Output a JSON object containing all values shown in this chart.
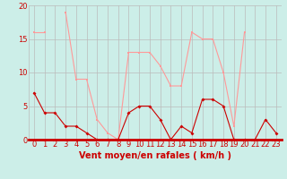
{
  "hours": [
    0,
    1,
    2,
    3,
    4,
    5,
    6,
    7,
    8,
    9,
    10,
    11,
    12,
    13,
    14,
    15,
    16,
    17,
    18,
    19,
    20,
    21,
    22,
    23
  ],
  "vent_moyen": [
    7,
    4,
    4,
    2,
    2,
    1,
    0,
    0,
    0,
    4,
    5,
    5,
    3,
    0,
    2,
    1,
    6,
    6,
    5,
    0,
    0,
    0,
    3,
    1
  ],
  "rafales": [
    16,
    16,
    null,
    19,
    9,
    9,
    3,
    1,
    0,
    13,
    13,
    13,
    11,
    8,
    8,
    16,
    15,
    15,
    10,
    2,
    16,
    null,
    null,
    1
  ],
  "color_moyen": "#cc0000",
  "color_rafales": "#ff9999",
  "bg_color": "#cceee8",
  "grid_color": "#bbbbbb",
  "xlabel": "Vent moyen/en rafales ( km/h )",
  "xlim": [
    -0.5,
    23.5
  ],
  "ylim": [
    0,
    20
  ],
  "yticks": [
    0,
    5,
    10,
    15,
    20
  ],
  "xticks": [
    0,
    1,
    2,
    3,
    4,
    5,
    6,
    7,
    8,
    9,
    10,
    11,
    12,
    13,
    14,
    15,
    16,
    17,
    18,
    19,
    20,
    21,
    22,
    23
  ],
  "xlabel_fontsize": 7,
  "tick_fontsize": 6
}
